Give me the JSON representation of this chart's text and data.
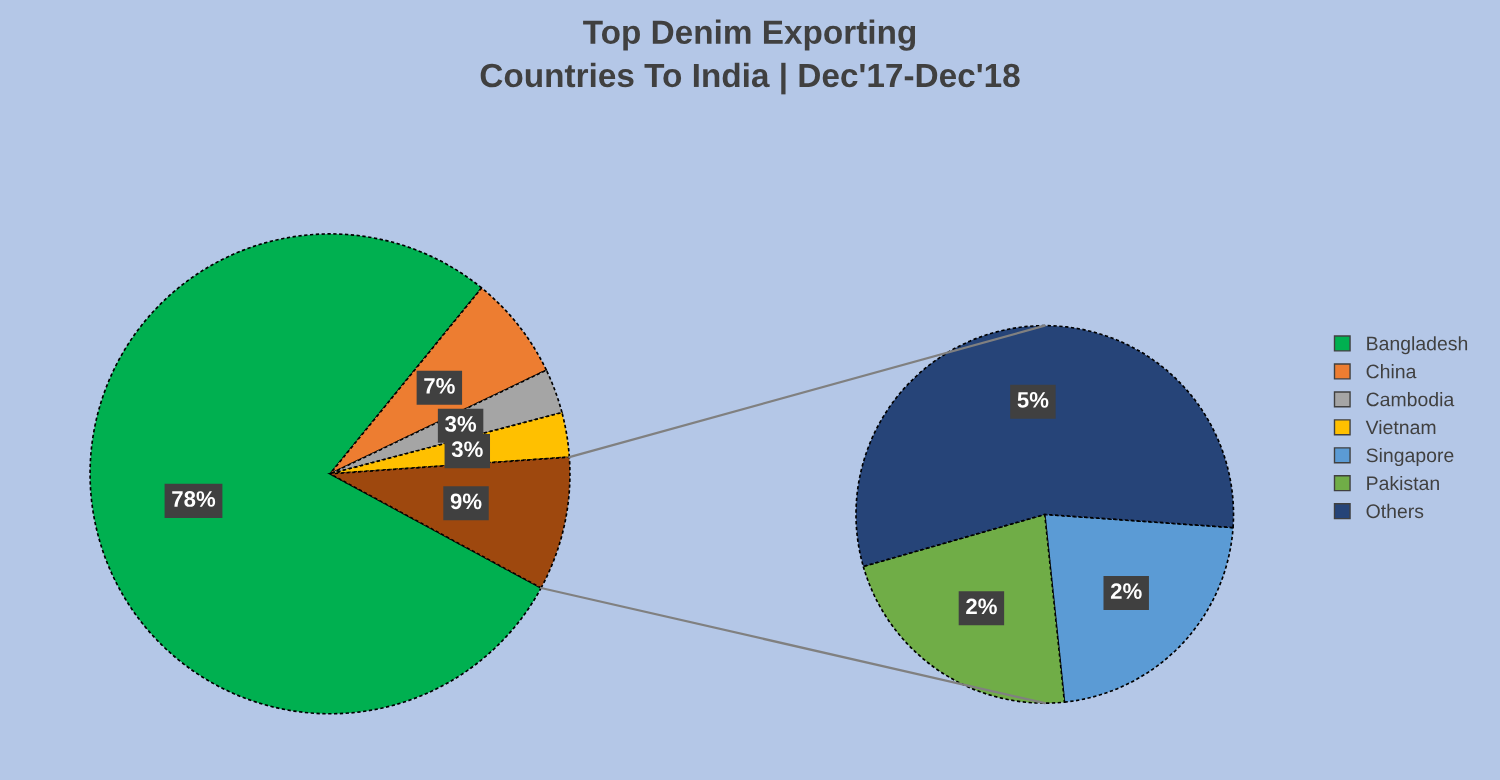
{
  "chart_data": [
    {
      "type": "pie",
      "title": "Top Denim Exporting\nCountries To India | Dec'17-Dec'18",
      "categories": [
        "Bangladesh",
        "China",
        "Cambodia",
        "Vietnam",
        null
      ],
      "values": [
        78,
        7,
        3,
        3,
        9
      ],
      "colors": [
        "#00b050",
        "#ed7d31",
        "#a5a5a5",
        "#ffc000",
        "#9e480e"
      ],
      "value_labels": [
        "78%",
        "7%",
        "3%",
        "3%",
        "9%"
      ],
      "legend": "right"
    },
    {
      "type": "pie",
      "categories": [
        "Singapore",
        "Pakistan",
        "Others"
      ],
      "values": [
        2,
        2,
        5
      ],
      "colors": [
        "#5b9bd5",
        "#70ad47",
        "#264478"
      ],
      "value_labels": [
        "2%",
        "2%",
        "5%"
      ],
      "legend": "right"
    }
  ]
}
